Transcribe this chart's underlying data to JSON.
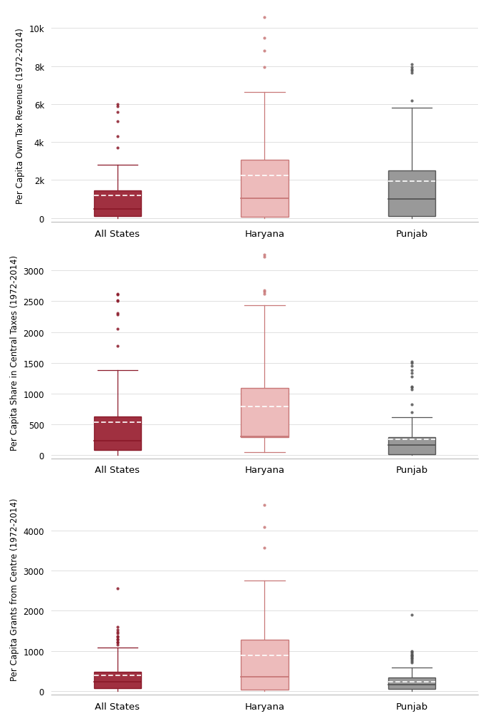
{
  "plots": [
    {
      "ylabel": "Per Capita Own Tax Revenue (1972-2014)",
      "ylim": [
        -200,
        11000
      ],
      "yticks": [
        0,
        2000,
        4000,
        6000,
        8000,
        10000
      ],
      "yticklabels": [
        "0",
        "2k",
        "4k",
        "6k",
        "8k",
        "10k"
      ],
      "groups": [
        {
          "label": "All States",
          "color": "#8B1A2A",
          "facecolor": "#A03040",
          "q1": 100,
          "median": 480,
          "q3": 1450,
          "mean": 1200,
          "whislo": -50,
          "whishi": 2800,
          "fliers": [
            3700,
            4300,
            5100,
            5600,
            5900,
            6000
          ]
        },
        {
          "label": "Haryana",
          "color": "#C87878",
          "facecolor": "#EDBBBB",
          "q1": 70,
          "median": 1050,
          "q3": 3050,
          "mean": 2250,
          "whislo": -80,
          "whishi": 6650,
          "fliers": [
            7950,
            8800,
            9500,
            10600
          ]
        },
        {
          "label": "Punjab",
          "color": "#555555",
          "facecolor": "#999999",
          "q1": 80,
          "median": 1000,
          "q3": 2500,
          "mean": 1950,
          "whislo": -80,
          "whishi": 5800,
          "fliers": [
            6200,
            7650,
            7750,
            7850,
            7950,
            8100
          ]
        }
      ]
    },
    {
      "ylabel": "Per Capita Share in Central Taxes (1972-2014)",
      "ylim": [
        -50,
        3400
      ],
      "yticks": [
        0,
        500,
        1000,
        1500,
        2000,
        2500,
        3000
      ],
      "yticklabels": [
        "0",
        "500",
        "1000",
        "1500",
        "2000",
        "2500",
        "3000"
      ],
      "groups": [
        {
          "label": "All States",
          "color": "#8B1A2A",
          "facecolor": "#A03040",
          "q1": 90,
          "median": 240,
          "q3": 630,
          "mean": 540,
          "whislo": -20,
          "whishi": 1380,
          "fliers": [
            1780,
            2050,
            2280,
            2310,
            2500,
            2520,
            2610,
            2620
          ]
        },
        {
          "label": "Haryana",
          "color": "#C87878",
          "facecolor": "#EDBBBB",
          "q1": 290,
          "median": 310,
          "q3": 1090,
          "mean": 790,
          "whislo": 55,
          "whishi": 2430,
          "fliers": [
            2620,
            2650,
            2680,
            3220,
            3260
          ]
        },
        {
          "label": "Punjab",
          "color": "#555555",
          "facecolor": "#999999",
          "q1": 10,
          "median": 165,
          "q3": 295,
          "mean": 255,
          "whislo": -10,
          "whishi": 620,
          "fliers": [
            700,
            820,
            1070,
            1100,
            1120,
            1280,
            1330,
            1380,
            1450,
            1500,
            1520
          ]
        }
      ]
    },
    {
      "ylabel": "Per Capita Grants from Centre (1972-2014)",
      "ylim": [
        -100,
        5200
      ],
      "yticks": [
        0,
        1000,
        2000,
        3000,
        4000
      ],
      "yticklabels": [
        "0",
        "1000",
        "2000",
        "3000",
        "4000"
      ],
      "groups": [
        {
          "label": "All States",
          "color": "#8B1A2A",
          "facecolor": "#A03040",
          "q1": 75,
          "median": 235,
          "q3": 475,
          "mean": 390,
          "whislo": -50,
          "whishi": 1080,
          "fliers": [
            1150,
            1200,
            1230,
            1270,
            1300,
            1340,
            1370,
            1430,
            1480,
            1530,
            1600,
            2550
          ]
        },
        {
          "label": "Haryana",
          "color": "#C87878",
          "facecolor": "#EDBBBB",
          "q1": 30,
          "median": 350,
          "q3": 1280,
          "mean": 880,
          "whislo": -50,
          "whishi": 2760,
          "fliers": [
            3570,
            4080,
            4630
          ]
        },
        {
          "label": "Punjab",
          "color": "#555555",
          "facecolor": "#999999",
          "q1": 50,
          "median": 150,
          "q3": 330,
          "mean": 230,
          "whislo": -30,
          "whishi": 590,
          "fliers": [
            700,
            740,
            780,
            810,
            840,
            860,
            880,
            910,
            940,
            970,
            1000,
            1900
          ]
        }
      ]
    }
  ],
  "bg_color": "#ffffff",
  "plot_bg_color": "#ffffff",
  "grid_color": "#e0e0e0",
  "box_width": 0.32,
  "categories": [
    "All States",
    "Haryana",
    "Punjab"
  ]
}
